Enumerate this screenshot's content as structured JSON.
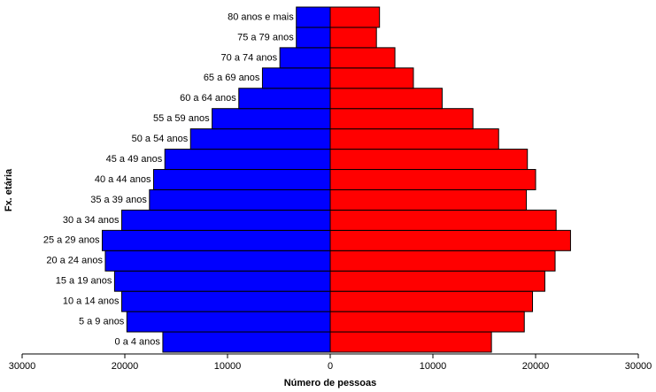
{
  "chart_data": {
    "type": "pyramid",
    "x_label": "Número de pessoas",
    "y_label": "Fx. etária",
    "categories": [
      "0 a 4 anos",
      "5 a 9 anos",
      "10 a 14 anos",
      "15 a 19 anos",
      "20 a 24 anos",
      "25 a 29 anos",
      "30 a 34 anos",
      "35 a 39 anos",
      "40 a 44 anos",
      "45 a 49 anos",
      "50 a 54 anos",
      "55 a 59 anos",
      "60 a 64 anos",
      "65 a 69 anos",
      "70 a 74 anos",
      "75 a 79 anos",
      "80 anos e mais"
    ],
    "series": [
      {
        "color": "#0000ff",
        "values": [
          -16300,
          -19800,
          -20300,
          -21000,
          -21900,
          -22200,
          -20300,
          -17600,
          -17200,
          -16100,
          -13600,
          -11500,
          -8900,
          -6600,
          -4900,
          -3300,
          -3300
        ]
      },
      {
        "color": "#ff0000",
        "values": [
          15700,
          18900,
          19700,
          20900,
          21900,
          23400,
          22000,
          19100,
          20000,
          19200,
          16400,
          13900,
          10900,
          8100,
          6300,
          4500,
          4800
        ]
      }
    ],
    "xlim": [
      -30000,
      30000
    ],
    "xticks": [
      {
        "value": -30000,
        "label": "30000"
      },
      {
        "value": -20000,
        "label": "20000"
      },
      {
        "value": -10000,
        "label": "10000"
      },
      0,
      10000,
      20000,
      30000
    ]
  }
}
